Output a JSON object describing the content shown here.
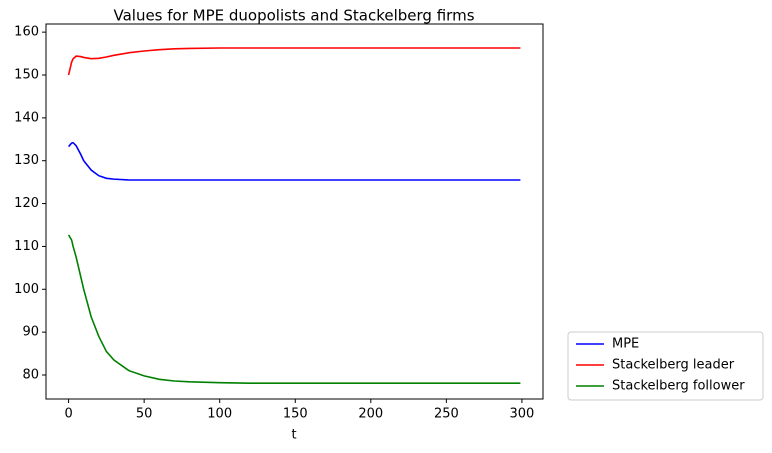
{
  "chart_data": {
    "type": "line",
    "title": "Values for MPE duopolists and  Stackelberg firms",
    "x_label": "t",
    "x": [
      0,
      2,
      3,
      5,
      8,
      10,
      15,
      20,
      25,
      30,
      40,
      50,
      60,
      70,
      80,
      100,
      120,
      150,
      200,
      250,
      299
    ],
    "series": [
      {
        "name": "MPE",
        "color": "#0000ff",
        "values": [
          133.3,
          134.1,
          134.2,
          133.5,
          131.5,
          130.0,
          127.8,
          126.5,
          125.9,
          125.7,
          125.5,
          125.5,
          125.5,
          125.5,
          125.5,
          125.5,
          125.5,
          125.5,
          125.5,
          125.5,
          125.5
        ]
      },
      {
        "name": "Stackelberg leader",
        "color": "#ff0000",
        "values": [
          150,
          153,
          153.8,
          154.4,
          154.3,
          154.1,
          153.8,
          153.9,
          154.2,
          154.6,
          155.2,
          155.6,
          155.9,
          156.1,
          156.2,
          156.3,
          156.3,
          156.3,
          156.3,
          156.3,
          156.3
        ]
      },
      {
        "name": "Stackelberg follower",
        "color": "#008000",
        "values": [
          112.7,
          111.5,
          110,
          107.5,
          103,
          100,
          93.5,
          89,
          85.5,
          83.5,
          81,
          79.8,
          79,
          78.6,
          78.4,
          78.2,
          78.1,
          78.1,
          78.1,
          78.1,
          78.1
        ]
      }
    ],
    "xlim": [
      -14.95,
      313.95
    ],
    "xticks": [
      0,
      50,
      100,
      150,
      200,
      250,
      300
    ],
    "ylim": [
      74.4,
      161.9
    ],
    "yticks": [
      80,
      90,
      100,
      110,
      120,
      130,
      140,
      150,
      160
    ],
    "legend": "outside lower right"
  }
}
